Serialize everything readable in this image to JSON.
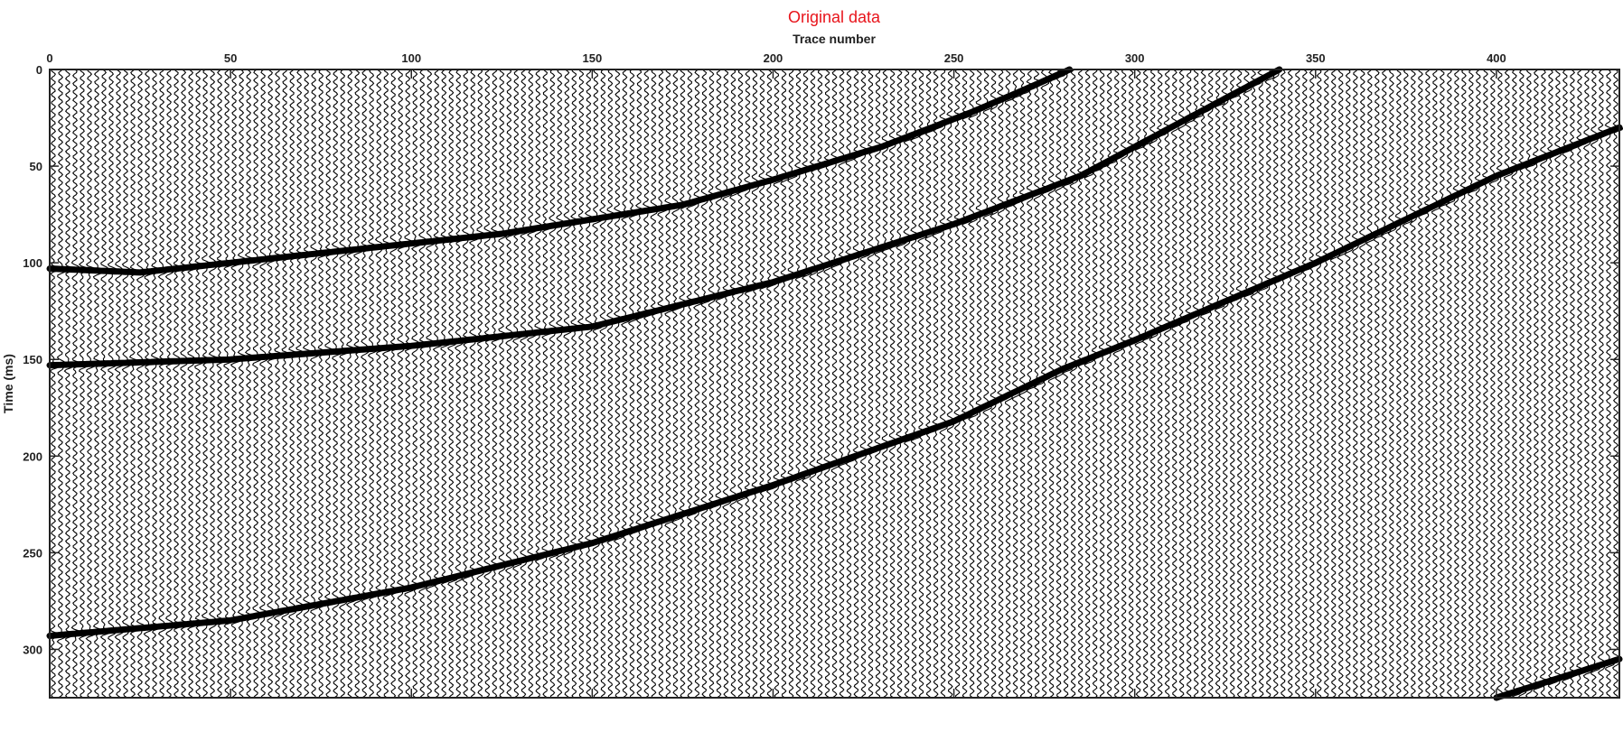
{
  "chart_data": {
    "type": "line",
    "title": "Original data",
    "xlabel": "Trace number",
    "ylabel": "Time (ms)",
    "xlim": [
      0,
      434
    ],
    "ylim": [
      0,
      325
    ],
    "y_reversed": true,
    "x_axis_position": "top",
    "grid": false,
    "xticks": [
      0,
      50,
      100,
      150,
      200,
      250,
      300,
      350,
      400
    ],
    "yticks": [
      0,
      50,
      100,
      150,
      200,
      250,
      300
    ],
    "wiggle_trace_spacing": 2,
    "events": [
      {
        "name": "",
        "x": [
          0,
          25,
          75,
          125,
          175,
          200,
          230,
          255,
          270,
          282
        ],
        "y": [
          103,
          105,
          95,
          85,
          70,
          57,
          40,
          22,
          10,
          0
        ]
      },
      {
        "name": "",
        "x": [
          0,
          50,
          100,
          150,
          200,
          250,
          285,
          310,
          340
        ],
        "y": [
          153,
          150,
          143,
          133,
          110,
          80,
          55,
          30,
          0
        ]
      },
      {
        "name": "",
        "x": [
          0,
          50,
          100,
          150,
          200,
          250,
          280,
          300,
          350,
          400,
          434
        ],
        "y": [
          293,
          285,
          268,
          245,
          215,
          182,
          155,
          140,
          100,
          55,
          30
        ]
      },
      {
        "name": "",
        "x": [
          400,
          434
        ],
        "y": [
          325,
          305
        ]
      }
    ],
    "colors": {
      "title": "#e8141b",
      "traces": "#000000",
      "axes": "#222222"
    }
  }
}
